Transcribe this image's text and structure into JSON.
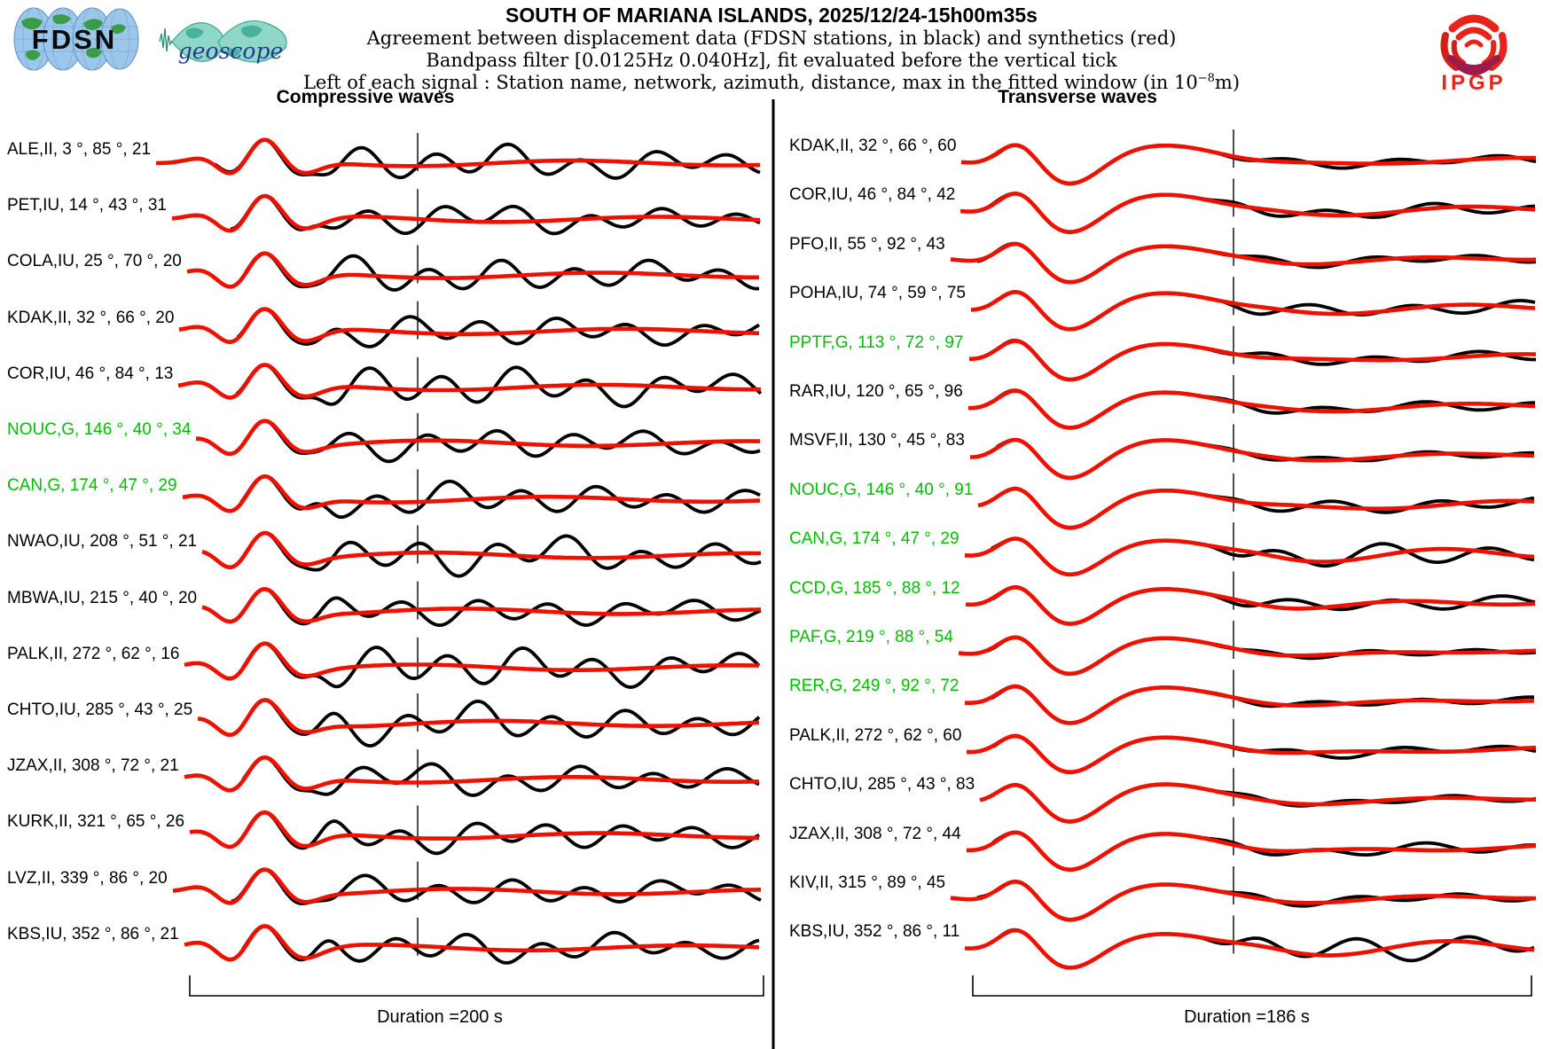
{
  "header": {
    "title": "SOUTH OF MARIANA ISLANDS, 2025/12/24-15h00m35s",
    "subtitle1": "Agreement between displacement data (FDSN stations, in black) and synthetics (red)",
    "subtitle2": "Bandpass filter [0.0125Hz 0.040Hz], fit evaluated before the vertical tick",
    "subtitle3_prefix": "Left of each signal : Station name, network, azimuth, distance, max in the fitted window (in 10",
    "subtitle3_sup": "−8",
    "subtitle3_suffix": "m)",
    "logos": {
      "fdsn": "FDSN",
      "geoscope": "geoscope",
      "ipgp": "IPGP"
    }
  },
  "colors": {
    "data_trace": "#000000",
    "synthetic_trace": "#ee1100",
    "geoscope_station_label": "#00be00",
    "fdsn_station_label": "#000000",
    "ipgp_red": "#e8231a",
    "ipgp_crimson": "#9b1b4d"
  },
  "chart_data": [
    {
      "type": "line",
      "panel": "left",
      "title": "Compressive waves",
      "wave_kind": "P",
      "duration_label": "Duration =200 s",
      "duration_seconds": 200,
      "legend": {
        "black": "displacement data (FDSN stations)",
        "red": "synthetics"
      },
      "stations": [
        {
          "label": "ALE,II, 3 °, 85 °, 21",
          "code": "ALE",
          "network": "II",
          "azimuth_deg": 3,
          "distance_deg": 85,
          "max_1e8_m": 21,
          "green": false,
          "seed": 11,
          "coda": 0.5
        },
        {
          "label": "PET,IU, 14 °, 43 °, 31",
          "code": "PET",
          "network": "IU",
          "azimuth_deg": 14,
          "distance_deg": 43,
          "max_1e8_m": 31,
          "green": false,
          "seed": 12,
          "coda": 0.42
        },
        {
          "label": "COLA,IU, 25 °, 70 °, 20",
          "code": "COLA",
          "network": "IU",
          "azimuth_deg": 25,
          "distance_deg": 70,
          "max_1e8_m": 20,
          "green": false,
          "seed": 13,
          "coda": 0.5
        },
        {
          "label": "KDAK,II, 32 °, 66 °, 20",
          "code": "KDAK",
          "network": "II",
          "azimuth_deg": 32,
          "distance_deg": 66,
          "max_1e8_m": 20,
          "green": false,
          "seed": 14,
          "coda": 0.45
        },
        {
          "label": "COR,IU, 46 °, 84 °, 13",
          "code": "COR",
          "network": "IU",
          "azimuth_deg": 46,
          "distance_deg": 84,
          "max_1e8_m": 13,
          "green": false,
          "seed": 15,
          "coda": 0.58
        },
        {
          "label": "NOUC,G, 146 °, 40 °, 34",
          "code": "NOUC",
          "network": "G",
          "azimuth_deg": 146,
          "distance_deg": 40,
          "max_1e8_m": 34,
          "green": true,
          "seed": 16,
          "coda": 0.45
        },
        {
          "label": "CAN,G, 174 °, 47 °, 29",
          "code": "CAN",
          "network": "G",
          "azimuth_deg": 174,
          "distance_deg": 47,
          "max_1e8_m": 29,
          "green": true,
          "seed": 17,
          "coda": 0.48
        },
        {
          "label": "NWAO,IU, 208 °, 51 °, 21",
          "code": "NWAO",
          "network": "IU",
          "azimuth_deg": 208,
          "distance_deg": 51,
          "max_1e8_m": 21,
          "green": false,
          "seed": 18,
          "coda": 0.55
        },
        {
          "label": "MBWA,IU, 215 °, 40 °, 20",
          "code": "MBWA",
          "network": "IU",
          "azimuth_deg": 215,
          "distance_deg": 40,
          "max_1e8_m": 20,
          "green": false,
          "seed": 19,
          "coda": 0.42
        },
        {
          "label": "PALK,II, 272 °, 62 °, 16",
          "code": "PALK",
          "network": "II",
          "azimuth_deg": 272,
          "distance_deg": 62,
          "max_1e8_m": 16,
          "green": false,
          "seed": 20,
          "coda": 0.6
        },
        {
          "label": "CHTO,IU, 285 °, 43 °, 25",
          "code": "CHTO",
          "network": "IU",
          "azimuth_deg": 285,
          "distance_deg": 43,
          "max_1e8_m": 25,
          "green": false,
          "seed": 21,
          "coda": 0.55
        },
        {
          "label": "JZAX,II, 308 °, 72 °, 21",
          "code": "JZAX",
          "network": "II",
          "azimuth_deg": 308,
          "distance_deg": 72,
          "max_1e8_m": 21,
          "green": false,
          "seed": 22,
          "coda": 0.45
        },
        {
          "label": "KURK,II, 321 °, 65 °, 26",
          "code": "KURK",
          "network": "II",
          "azimuth_deg": 321,
          "distance_deg": 65,
          "max_1e8_m": 26,
          "green": false,
          "seed": 23,
          "coda": 0.45
        },
        {
          "label": "LVZ,II, 339 °, 86 °, 20",
          "code": "LVZ",
          "network": "II",
          "azimuth_deg": 339,
          "distance_deg": 86,
          "max_1e8_m": 20,
          "green": false,
          "seed": 24,
          "coda": 0.4
        },
        {
          "label": "KBS,IU, 352 °, 86 °, 21",
          "code": "KBS",
          "network": "IU",
          "azimuth_deg": 352,
          "distance_deg": 86,
          "max_1e8_m": 21,
          "green": false,
          "seed": 25,
          "coda": 0.45
        }
      ]
    },
    {
      "type": "line",
      "panel": "right",
      "title": "Transverse waves",
      "wave_kind": "S",
      "duration_label": "Duration =186 s",
      "duration_seconds": 186,
      "legend": {
        "black": "displacement data (FDSN stations)",
        "red": "synthetics"
      },
      "stations": [
        {
          "label": "KDAK,II, 32 °, 66 °, 60",
          "code": "KDAK",
          "network": "II",
          "azimuth_deg": 32,
          "distance_deg": 66,
          "max_1e8_m": 60,
          "green": false,
          "seed": 31,
          "coda": 0.2
        },
        {
          "label": "COR,IU, 46 °, 84 °, 42",
          "code": "COR",
          "network": "IU",
          "azimuth_deg": 46,
          "distance_deg": 84,
          "max_1e8_m": 42,
          "green": false,
          "seed": 32,
          "coda": 0.28
        },
        {
          "label": "PFO,II, 55 °, 92 °, 43",
          "code": "PFO",
          "network": "II",
          "azimuth_deg": 55,
          "distance_deg": 92,
          "max_1e8_m": 43,
          "green": false,
          "seed": 33,
          "coda": 0.2
        },
        {
          "label": "POHA,IU, 74 °, 59 °, 75",
          "code": "POHA",
          "network": "IU",
          "azimuth_deg": 74,
          "distance_deg": 59,
          "max_1e8_m": 75,
          "green": false,
          "seed": 34,
          "coda": 0.3
        },
        {
          "label": "PPTF,G, 113 °, 72 °, 97",
          "code": "PPTF",
          "network": "G",
          "azimuth_deg": 113,
          "distance_deg": 72,
          "max_1e8_m": 97,
          "green": true,
          "seed": 35,
          "coda": 0.22
        },
        {
          "label": "RAR,IU, 120 °, 65 °, 96",
          "code": "RAR",
          "network": "IU",
          "azimuth_deg": 120,
          "distance_deg": 65,
          "max_1e8_m": 96,
          "green": false,
          "seed": 36,
          "coda": 0.22
        },
        {
          "label": "MSVF,II, 130 °, 45 °, 83",
          "code": "MSVF",
          "network": "II",
          "azimuth_deg": 130,
          "distance_deg": 45,
          "max_1e8_m": 83,
          "green": false,
          "seed": 37,
          "coda": 0.16
        },
        {
          "label": "NOUC,G, 146 °, 40 °, 91",
          "code": "NOUC",
          "network": "G",
          "azimuth_deg": 146,
          "distance_deg": 40,
          "max_1e8_m": 91,
          "green": true,
          "seed": 38,
          "coda": 0.3
        },
        {
          "label": "CAN,G, 174 °, 47 °, 29",
          "code": "CAN",
          "network": "G",
          "azimuth_deg": 174,
          "distance_deg": 47,
          "max_1e8_m": 29,
          "green": true,
          "seed": 39,
          "coda": 0.5
        },
        {
          "label": "CCD,G, 185 °, 88 °, 12",
          "code": "CCD",
          "network": "G",
          "azimuth_deg": 185,
          "distance_deg": 88,
          "max_1e8_m": 12,
          "green": true,
          "seed": 40,
          "coda": 0.3
        },
        {
          "label": "PAF,G, 219 °, 88 °, 54",
          "code": "PAF",
          "network": "G",
          "azimuth_deg": 219,
          "distance_deg": 88,
          "max_1e8_m": 54,
          "green": true,
          "seed": 41,
          "coda": 0.15
        },
        {
          "label": "RER,G, 249 °, 92 °, 72",
          "code": "RER",
          "network": "G",
          "azimuth_deg": 249,
          "distance_deg": 92,
          "max_1e8_m": 72,
          "green": true,
          "seed": 42,
          "coda": 0.15
        },
        {
          "label": "PALK,II, 272 °, 62 °, 60",
          "code": "PALK",
          "network": "II",
          "azimuth_deg": 272,
          "distance_deg": 62,
          "max_1e8_m": 60,
          "green": false,
          "seed": 43,
          "coda": 0.2
        },
        {
          "label": "CHTO,IU, 285 °, 43 °, 83",
          "code": "CHTO",
          "network": "IU",
          "azimuth_deg": 285,
          "distance_deg": 43,
          "max_1e8_m": 83,
          "green": false,
          "seed": 44,
          "coda": 0.15
        },
        {
          "label": "JZAX,II, 308 °, 72 °, 44",
          "code": "JZAX",
          "network": "II",
          "azimuth_deg": 308,
          "distance_deg": 72,
          "max_1e8_m": 44,
          "green": false,
          "seed": 45,
          "coda": 0.25
        },
        {
          "label": "KIV,II, 315 °, 89 °, 45",
          "code": "KIV",
          "network": "II",
          "azimuth_deg": 315,
          "distance_deg": 89,
          "max_1e8_m": 45,
          "green": false,
          "seed": 46,
          "coda": 0.2
        },
        {
          "label": "KBS,IU, 352 °, 86 °, 11",
          "code": "KBS",
          "network": "IU",
          "azimuth_deg": 352,
          "distance_deg": 86,
          "max_1e8_m": 11,
          "green": false,
          "seed": 47,
          "coda": 0.58
        }
      ]
    }
  ]
}
